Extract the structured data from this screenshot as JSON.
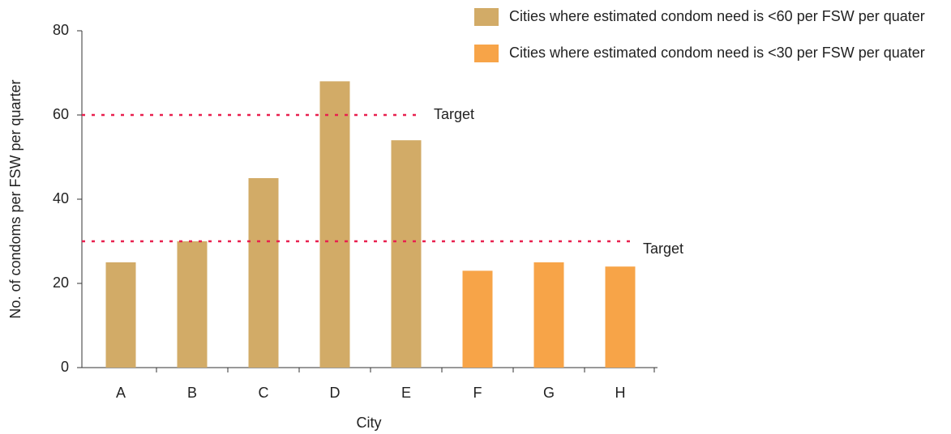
{
  "chart_data": {
    "type": "bar",
    "x_label": "City",
    "y_label": "No. of condoms per FSW per quarter",
    "categories": [
      "A",
      "B",
      "C",
      "D",
      "E",
      "F",
      "G",
      "H"
    ],
    "series": [
      {
        "name": "Cities where estimated condom need is <60 per FSW per quater",
        "color": "#d2ab67",
        "values": [
          25,
          30,
          45,
          68,
          54,
          null,
          null,
          null
        ]
      },
      {
        "name": "Cities where estimated condom need is <30 per FSW per quater",
        "color": "#f7a448",
        "values": [
          null,
          null,
          null,
          null,
          null,
          23,
          25,
          24
        ]
      }
    ],
    "reference_lines": [
      {
        "value": 60,
        "label": "Target",
        "color": "#e8204f"
      },
      {
        "value": 30,
        "label": "Target",
        "color": "#e8204f"
      }
    ],
    "ylim": [
      0,
      80
    ],
    "yticks": [
      0,
      20,
      40,
      60,
      80
    ],
    "grid": false,
    "legend": "top-right"
  }
}
